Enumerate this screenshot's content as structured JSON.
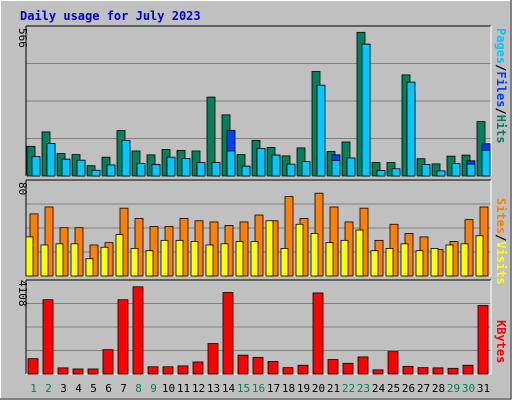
{
  "title": "Daily usage for July 2023",
  "colors": {
    "background": "#c0c0c0",
    "frame_light": "#ffffff",
    "frame_dark": "#808080",
    "title": "#0000cc",
    "hits": "#00805c",
    "files": "#0040ff",
    "pages": "#00c8ff",
    "visits": "#ffff00",
    "sites": "#ff8000",
    "kbytes": "#ff0000",
    "gridline": "#808080",
    "weekend_day": "#00805c",
    "weekday": "#000000"
  },
  "panel_labels": {
    "top": [
      "Pages",
      "/",
      "Files",
      "/",
      "Hits"
    ],
    "middle": [
      "Sites",
      "/",
      "Visits"
    ],
    "bottom": [
      "KBytes"
    ]
  },
  "axis_max_labels": {
    "top": "566",
    "middle": "80",
    "bottom": "4108"
  },
  "chart_data": {
    "type": "bar",
    "title": "Daily usage for July 2023",
    "categories": [
      "1",
      "2",
      "3",
      "4",
      "5",
      "6",
      "7",
      "8",
      "9",
      "10",
      "11",
      "12",
      "13",
      "14",
      "15",
      "16",
      "17",
      "18",
      "19",
      "20",
      "21",
      "22",
      "23",
      "24",
      "25",
      "26",
      "27",
      "28",
      "29",
      "30",
      "31"
    ],
    "weekend_days": [
      "1",
      "2",
      "8",
      "9",
      "15",
      "16",
      "22",
      "23",
      "29",
      "30"
    ],
    "panels": [
      {
        "name": "top",
        "ymax": 566,
        "max_label": "566",
        "series": [
          {
            "name": "Hits",
            "values": [
              115,
              171,
              87,
              83,
              40,
              73,
              176,
              97,
              82,
              103,
              99,
              97,
              306,
              237,
              83,
              138,
              111,
              78,
              109,
              405,
              95,
              132,
              557,
              52,
              52,
              392,
              67,
              47,
              77,
              81,
              211
            ]
          },
          {
            "name": "Files",
            "values": [
              64,
              126,
              65,
              61,
              22,
              43,
              112,
              31,
              44,
              60,
              62,
              45,
              52,
              177,
              38,
              107,
              81,
              36,
              45,
              75,
              82,
              70,
              511,
              21,
              21,
              328,
              32,
              13,
              40,
              59,
              125
            ]
          },
          {
            "name": "Pages",
            "values": [
              75,
              126,
              65,
              61,
              22,
              43,
              138,
              49,
              44,
              73,
              68,
              52,
              52,
              97,
              38,
              107,
              81,
              46,
              56,
              352,
              60,
              70,
              511,
              21,
              28,
              364,
              45,
              20,
              48,
              46,
              100
            ]
          }
        ]
      },
      {
        "name": "middle",
        "ymax": 80,
        "max_label": "80",
        "series": [
          {
            "name": "Visits",
            "values": [
              34,
              27,
              28,
              28,
              15,
              25,
              36,
              24,
              22,
              31,
              31,
              30,
              27,
              28,
              30,
              30,
              48,
              24,
              45,
              37,
              29,
              31,
              40,
              22,
              24,
              28,
              22,
              24,
              27,
              28,
              35
            ]
          },
          {
            "name": "Sites",
            "values": [
              54,
              60,
              42,
              42,
              27,
              29,
              59,
              50,
              43,
              43,
              50,
              48,
              47,
              44,
              47,
              53,
              48,
              69,
              50,
              72,
              60,
              47,
              59,
              31,
              45,
              37,
              34,
              23,
              30,
              49,
              60
            ]
          }
        ]
      },
      {
        "name": "bottom",
        "ymax": 4108,
        "max_label": "4108",
        "series": [
          {
            "name": "KBytes",
            "values": [
              700,
              3390,
              280,
              230,
              230,
              1110,
              3390,
              3980,
              330,
              330,
              370,
              550,
              1390,
              3720,
              860,
              760,
              570,
              290,
              400,
              3700,
              660,
              490,
              780,
              190,
              1020,
              350,
              290,
              280,
              260,
              400,
              3130
            ]
          }
        ]
      }
    ],
    "legend": "right-side vertical labels per panel"
  }
}
